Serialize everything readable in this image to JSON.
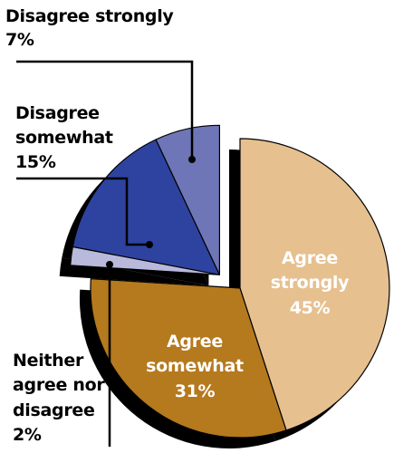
{
  "chart_data": {
    "type": "pie",
    "title": "",
    "categories": [
      "Agree strongly",
      "Agree somewhat",
      "Neither agree nor disagree",
      "Disagree somewhat",
      "Disagree strongly"
    ],
    "values": [
      45,
      31,
      2,
      15,
      7
    ],
    "value_labels": [
      "45%",
      "31%",
      "2%",
      "15%",
      "7%"
    ],
    "colors": [
      "#e6c08f",
      "#b5791e",
      "#b9b9dc",
      "#2e43a0",
      "#6e76b7"
    ],
    "exploded": [
      "Neither agree nor disagree",
      "Disagree somewhat",
      "Disagree strongly"
    ]
  },
  "labels": {
    "agree_strongly": [
      "Agree",
      "strongly",
      "45%"
    ],
    "agree_somewhat": [
      "Agree",
      "somewhat",
      "31%"
    ],
    "neither": [
      "Neither",
      "agree nor",
      "disagree",
      "2%"
    ],
    "disagree_somewhat": [
      "Disagree",
      "somewhat",
      "15%"
    ],
    "disagree_strongly": [
      "Disagree strongly",
      "7%"
    ]
  }
}
